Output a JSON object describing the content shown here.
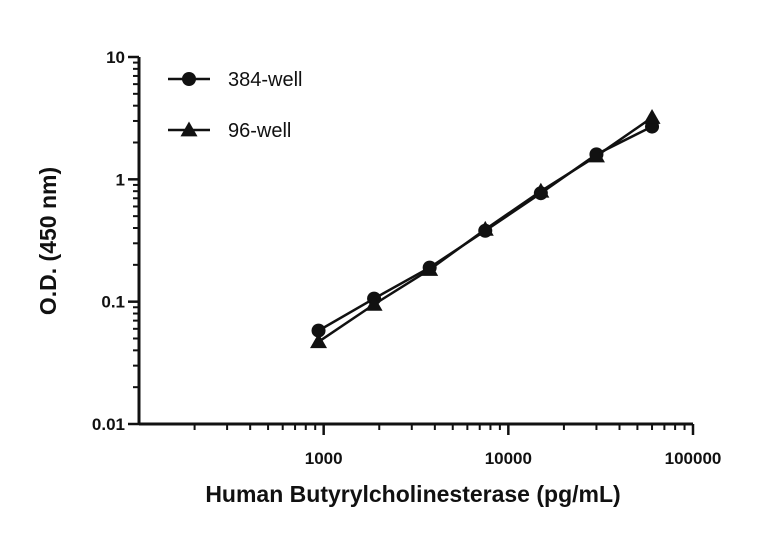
{
  "chart_data": {
    "type": "line",
    "xlabel": "Human Butyrylcholinesterase (pg/mL)",
    "ylabel": "O.D. (450 nm)",
    "xscale": "log",
    "yscale": "log",
    "xlim": [
      100,
      100000
    ],
    "ylim": [
      0.01,
      10
    ],
    "x_ticks": [
      1000,
      10000,
      100000
    ],
    "x_tick_labels": [
      "1000",
      "10000",
      "100000"
    ],
    "y_ticks": [
      0.01,
      0.1,
      1,
      10
    ],
    "y_tick_labels": [
      "0.01",
      "0.1",
      "1",
      "10"
    ],
    "grid": false,
    "legend_position": "top-left",
    "series": [
      {
        "name": "384-well",
        "marker": "circle",
        "color": "#111111",
        "x": [
          938,
          1875,
          3750,
          7500,
          15000,
          30000,
          60000
        ],
        "y": [
          0.058,
          0.106,
          0.19,
          0.38,
          0.77,
          1.6,
          2.7
        ]
      },
      {
        "name": "96-well",
        "marker": "triangle",
        "color": "#111111",
        "x": [
          938,
          1875,
          3750,
          7500,
          15000,
          30000,
          60000
        ],
        "y": [
          0.047,
          0.095,
          0.183,
          0.39,
          0.8,
          1.55,
          3.2
        ]
      }
    ]
  }
}
